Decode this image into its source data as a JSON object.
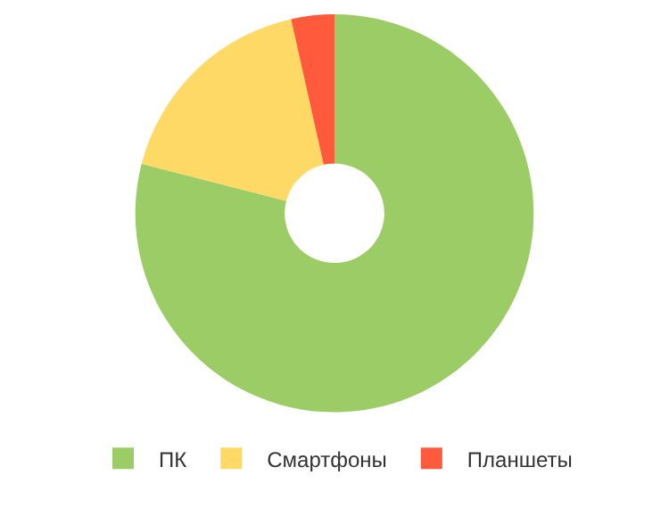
{
  "chart_data": {
    "type": "donut",
    "categories": [
      "ПК",
      "Смартфоны",
      "Планшеты"
    ],
    "values": [
      79,
      17.5,
      3.5
    ],
    "colors": [
      "#9ccc65",
      "#ffd966",
      "#ff5a3c"
    ],
    "legend": "bottom"
  }
}
